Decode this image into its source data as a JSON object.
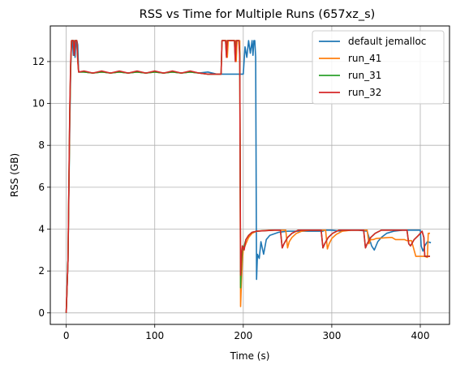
{
  "chart_data": {
    "type": "line",
    "title": "RSS vs Time for Multiple Runs (657xz_s)",
    "xlabel": "Time (s)",
    "ylabel": "RSS (GB)",
    "xlim": [
      -18,
      433
    ],
    "ylim": [
      -0.55,
      13.7
    ],
    "xticks": [
      0,
      100,
      200,
      300,
      400
    ],
    "yticks": [
      0,
      2,
      4,
      6,
      8,
      10,
      12
    ],
    "grid": true,
    "legend_position": "top-right",
    "series": [
      {
        "name": "default jemalloc",
        "color": "#1f77b4",
        "points": [
          [
            0,
            0
          ],
          [
            2,
            2.5
          ],
          [
            4,
            9
          ],
          [
            5,
            11.6
          ],
          [
            6,
            13
          ],
          [
            7,
            13
          ],
          [
            8,
            12.3
          ],
          [
            9,
            13
          ],
          [
            10,
            12.2
          ],
          [
            11,
            13
          ],
          [
            12,
            13
          ],
          [
            13,
            12.8
          ],
          [
            14,
            11.5
          ],
          [
            20,
            11.5
          ],
          [
            30,
            11.45
          ],
          [
            40,
            11.5
          ],
          [
            50,
            11.45
          ],
          [
            60,
            11.5
          ],
          [
            70,
            11.45
          ],
          [
            80,
            11.5
          ],
          [
            90,
            11.45
          ],
          [
            100,
            11.5
          ],
          [
            110,
            11.45
          ],
          [
            120,
            11.5
          ],
          [
            130,
            11.45
          ],
          [
            140,
            11.5
          ],
          [
            150,
            11.45
          ],
          [
            160,
            11.5
          ],
          [
            170,
            11.4
          ],
          [
            185,
            11.4
          ],
          [
            195,
            11.4
          ],
          [
            198,
            11.4
          ],
          [
            200,
            11.4
          ],
          [
            202,
            12.7
          ],
          [
            204,
            12.2
          ],
          [
            206,
            13
          ],
          [
            208,
            12.4
          ],
          [
            210,
            13
          ],
          [
            211,
            12.3
          ],
          [
            212,
            13
          ],
          [
            213,
            13
          ],
          [
            214,
            12.2
          ],
          [
            215,
            1.6
          ],
          [
            216,
            2.8
          ],
          [
            218,
            2.6
          ],
          [
            220,
            3.4
          ],
          [
            223,
            2.8
          ],
          [
            226,
            3.5
          ],
          [
            230,
            3.7
          ],
          [
            240,
            3.85
          ],
          [
            250,
            3.9
          ],
          [
            260,
            3.9
          ],
          [
            280,
            3.9
          ],
          [
            290,
            3.9
          ],
          [
            292,
            3.95
          ],
          [
            300,
            3.95
          ],
          [
            310,
            3.9
          ],
          [
            320,
            3.95
          ],
          [
            330,
            3.95
          ],
          [
            340,
            3.9
          ],
          [
            345,
            3.2
          ],
          [
            348,
            3.0
          ],
          [
            352,
            3.4
          ],
          [
            356,
            3.6
          ],
          [
            362,
            3.8
          ],
          [
            370,
            3.9
          ],
          [
            380,
            3.95
          ],
          [
            395,
            3.95
          ],
          [
            400,
            3.95
          ],
          [
            401,
            3.2
          ],
          [
            403,
            2.95
          ],
          [
            405,
            3.2
          ],
          [
            408,
            3.4
          ],
          [
            412,
            3.35
          ]
        ]
      },
      {
        "name": "run_41",
        "color": "#ff7f0e",
        "points": [
          [
            0,
            0
          ],
          [
            2,
            2.5
          ],
          [
            4,
            9.5
          ],
          [
            5,
            11.8
          ],
          [
            6,
            13
          ],
          [
            8,
            13
          ],
          [
            9,
            12.3
          ],
          [
            10,
            13
          ],
          [
            12,
            13
          ],
          [
            13,
            12
          ],
          [
            14,
            11.5
          ],
          [
            20,
            11.5
          ],
          [
            30,
            11.45
          ],
          [
            40,
            11.5
          ],
          [
            50,
            11.45
          ],
          [
            60,
            11.5
          ],
          [
            70,
            11.45
          ],
          [
            80,
            11.5
          ],
          [
            90,
            11.45
          ],
          [
            100,
            11.5
          ],
          [
            110,
            11.45
          ],
          [
            120,
            11.5
          ],
          [
            130,
            11.45
          ],
          [
            140,
            11.5
          ],
          [
            150,
            11.45
          ],
          [
            160,
            11.4
          ],
          [
            170,
            11.4
          ],
          [
            175,
            11.4
          ],
          [
            176,
            13
          ],
          [
            181,
            13
          ],
          [
            182,
            12.2
          ],
          [
            183,
            13
          ],
          [
            187,
            13
          ],
          [
            191,
            13
          ],
          [
            192,
            12
          ],
          [
            193,
            13
          ],
          [
            196,
            13
          ],
          [
            197,
            0.3
          ],
          [
            198,
            1.5
          ],
          [
            199,
            2.5
          ],
          [
            200,
            3.0
          ],
          [
            202,
            3.2
          ],
          [
            204,
            3.4
          ],
          [
            206,
            3.6
          ],
          [
            210,
            3.8
          ],
          [
            215,
            3.9
          ],
          [
            230,
            3.95
          ],
          [
            240,
            3.95
          ],
          [
            248,
            3.95
          ],
          [
            250,
            3.1
          ],
          [
            252,
            3.4
          ],
          [
            255,
            3.6
          ],
          [
            260,
            3.8
          ],
          [
            266,
            3.9
          ],
          [
            275,
            3.95
          ],
          [
            293,
            3.95
          ],
          [
            295,
            3.05
          ],
          [
            297,
            3.3
          ],
          [
            300,
            3.55
          ],
          [
            305,
            3.75
          ],
          [
            312,
            3.9
          ],
          [
            322,
            3.95
          ],
          [
            340,
            3.95
          ],
          [
            342,
            3.3
          ],
          [
            344,
            3.5
          ],
          [
            347,
            3.5
          ],
          [
            350,
            3.55
          ],
          [
            365,
            3.6
          ],
          [
            368,
            3.6
          ],
          [
            372,
            3.5
          ],
          [
            382,
            3.5
          ],
          [
            385,
            3.45
          ],
          [
            390,
            3.45
          ],
          [
            395,
            2.7
          ],
          [
            405,
            2.7
          ],
          [
            408,
            2.65
          ],
          [
            409,
            3.8
          ],
          [
            411,
            3.8
          ]
        ]
      },
      {
        "name": "run_31",
        "color": "#2ca02c",
        "points": [
          [
            0,
            0
          ],
          [
            2,
            2.5
          ],
          [
            4,
            9.5
          ],
          [
            5,
            11.8
          ],
          [
            6,
            13
          ],
          [
            8,
            13
          ],
          [
            9,
            12.4
          ],
          [
            10,
            13
          ],
          [
            12,
            13
          ],
          [
            13,
            12.2
          ],
          [
            14,
            11.5
          ],
          [
            20,
            11.5
          ],
          [
            30,
            11.45
          ],
          [
            40,
            11.5
          ],
          [
            50,
            11.45
          ],
          [
            60,
            11.5
          ],
          [
            70,
            11.45
          ],
          [
            80,
            11.5
          ],
          [
            90,
            11.45
          ],
          [
            100,
            11.5
          ],
          [
            110,
            11.45
          ],
          [
            120,
            11.5
          ],
          [
            130,
            11.45
          ],
          [
            140,
            11.5
          ],
          [
            150,
            11.45
          ],
          [
            160,
            11.4
          ],
          [
            170,
            11.4
          ],
          [
            175,
            11.4
          ],
          [
            176,
            13
          ],
          [
            180,
            13
          ],
          [
            181,
            12.3
          ],
          [
            182,
            13
          ],
          [
            186,
            13
          ],
          [
            190,
            13
          ],
          [
            191,
            12.1
          ],
          [
            192,
            13
          ],
          [
            195,
            13
          ],
          [
            196,
            12.4
          ],
          [
            197,
            1.2
          ],
          [
            198,
            2.4
          ],
          [
            199,
            3.0
          ],
          [
            201,
            3.2
          ],
          [
            203,
            3.5
          ],
          [
            206,
            3.7
          ],
          [
            210,
            3.85
          ],
          [
            215,
            3.9
          ],
          [
            235,
            3.95
          ],
          [
            242,
            3.95
          ],
          [
            244,
            3.1
          ],
          [
            246,
            3.3
          ],
          [
            250,
            3.6
          ],
          [
            255,
            3.8
          ],
          [
            262,
            3.95
          ],
          [
            282,
            3.95
          ],
          [
            288,
            3.95
          ],
          [
            290,
            3.1
          ],
          [
            292,
            3.3
          ],
          [
            296,
            3.6
          ],
          [
            301,
            3.8
          ],
          [
            308,
            3.95
          ],
          [
            330,
            3.95
          ],
          [
            336,
            3.95
          ],
          [
            338,
            3.1
          ],
          [
            340,
            3.3
          ],
          [
            344,
            3.6
          ],
          [
            349,
            3.8
          ],
          [
            356,
            3.95
          ],
          [
            380,
            3.95
          ],
          [
            385,
            3.95
          ],
          [
            387,
            3.3
          ],
          [
            389,
            3.2
          ],
          [
            393,
            3.5
          ],
          [
            398,
            3.7
          ],
          [
            402,
            3.9
          ],
          [
            404,
            3.6
          ],
          [
            405,
            2.7
          ],
          [
            411,
            2.7
          ]
        ]
      },
      {
        "name": "run_32",
        "color": "#d62728",
        "points": [
          [
            0,
            0
          ],
          [
            2,
            2.5
          ],
          [
            4,
            9.8
          ],
          [
            5,
            12
          ],
          [
            6,
            13
          ],
          [
            8,
            13
          ],
          [
            9,
            12.3
          ],
          [
            10,
            13
          ],
          [
            12,
            13
          ],
          [
            13,
            12.1
          ],
          [
            14,
            11.5
          ],
          [
            20,
            11.55
          ],
          [
            30,
            11.45
          ],
          [
            40,
            11.55
          ],
          [
            50,
            11.45
          ],
          [
            60,
            11.55
          ],
          [
            70,
            11.45
          ],
          [
            80,
            11.55
          ],
          [
            90,
            11.45
          ],
          [
            100,
            11.55
          ],
          [
            110,
            11.45
          ],
          [
            120,
            11.55
          ],
          [
            130,
            11.45
          ],
          [
            140,
            11.55
          ],
          [
            150,
            11.45
          ],
          [
            160,
            11.4
          ],
          [
            170,
            11.4
          ],
          [
            175,
            11.4
          ],
          [
            176,
            13
          ],
          [
            180,
            13
          ],
          [
            181,
            12.2
          ],
          [
            182,
            13
          ],
          [
            186,
            13
          ],
          [
            190,
            13
          ],
          [
            191,
            12
          ],
          [
            192,
            13
          ],
          [
            195,
            13
          ],
          [
            196,
            12.2
          ],
          [
            197,
            1.8
          ],
          [
            198,
            2.8
          ],
          [
            199,
            3.2
          ],
          [
            201,
            3.0
          ],
          [
            203,
            3.5
          ],
          [
            206,
            3.7
          ],
          [
            210,
            3.85
          ],
          [
            215,
            3.9
          ],
          [
            235,
            3.95
          ],
          [
            242,
            3.95
          ],
          [
            244,
            3.1
          ],
          [
            246,
            3.3
          ],
          [
            250,
            3.6
          ],
          [
            255,
            3.8
          ],
          [
            262,
            3.95
          ],
          [
            282,
            3.95
          ],
          [
            288,
            3.95
          ],
          [
            290,
            3.1
          ],
          [
            292,
            3.3
          ],
          [
            296,
            3.6
          ],
          [
            301,
            3.8
          ],
          [
            308,
            3.95
          ],
          [
            330,
            3.95
          ],
          [
            336,
            3.95
          ],
          [
            338,
            3.1
          ],
          [
            340,
            3.3
          ],
          [
            344,
            3.6
          ],
          [
            349,
            3.8
          ],
          [
            356,
            3.95
          ],
          [
            380,
            3.95
          ],
          [
            385,
            3.95
          ],
          [
            387,
            3.3
          ],
          [
            389,
            3.2
          ],
          [
            393,
            3.5
          ],
          [
            398,
            3.7
          ],
          [
            402,
            3.9
          ],
          [
            404,
            3.6
          ],
          [
            405,
            2.7
          ],
          [
            411,
            2.7
          ]
        ]
      }
    ]
  }
}
